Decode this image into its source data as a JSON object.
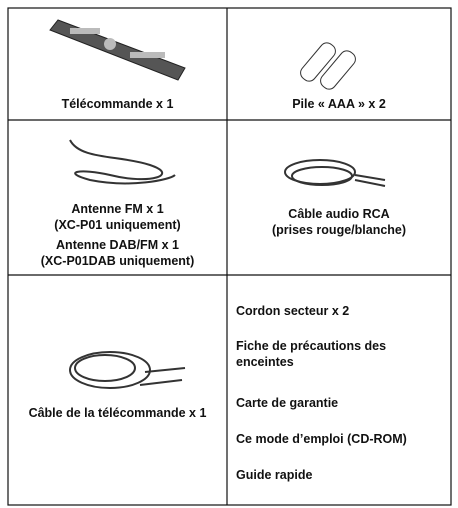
{
  "table": {
    "rows": [
      [
        {
          "label": "Télécommande x 1"
        },
        {
          "label": "Pile « AAA » x 2"
        }
      ],
      [
        {
          "lines": [
            "Antenne FM x 1",
            "(XC-P01 uniquement)",
            "Antenne DAB/FM x 1",
            "(XC-P01DAB uniquement)"
          ]
        },
        {
          "lines": [
            "Câble audio RCA",
            "(prises rouge/blanche)"
          ]
        }
      ],
      [
        {
          "label": "Câble de la télécommande x 1"
        },
        {
          "items": [
            "Cordon secteur x 2",
            "Fiche de précautions des enceintes",
            "Carte de garantie",
            "Ce mode d’emploi (CD-ROM)",
            "Guide rapide"
          ]
        }
      ]
    ]
  }
}
